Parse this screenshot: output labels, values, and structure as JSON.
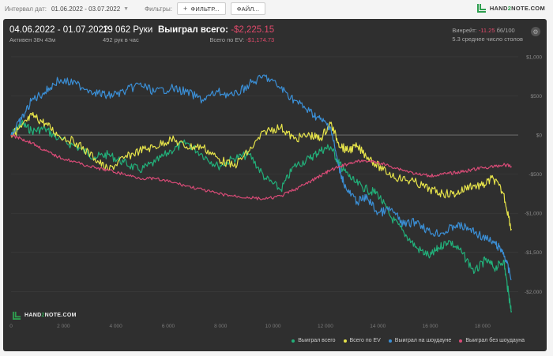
{
  "topbar": {
    "interval_label": "Интервал дат:",
    "interval_value": "01.06.2022 - 03.07.2022",
    "filters_label": "Фильтры:",
    "filter_button": "ФИЛЬТР...",
    "file_button": "ФАЙЛ...",
    "brand_a": "HAND",
    "brand_b": "2",
    "brand_c": "NOTE.COM"
  },
  "summary": {
    "dates": "04.06.2022 - 01.07.2022",
    "active": "Активен 38ч 43м",
    "hands": "19 062 Руки",
    "hands_rate": "492 рук в час",
    "won_total_label": "Выиграл всего:",
    "won_total_value": "-$2,225.15",
    "ev_label": "Всего по EV:",
    "ev_value": "-$1,174.73",
    "winrate_label": "Винрейт:",
    "winrate_value": "-11.25",
    "winrate_suffix": "б6/100",
    "avg_tables": "5.3 среднее число столов"
  },
  "plot_brand": {
    "a": "HAND",
    "b": "2",
    "c": "NOTE.COM"
  },
  "chart_data": {
    "type": "line",
    "y_ticks": [
      1000,
      500,
      0,
      -500,
      -1000,
      -1500,
      -2000
    ],
    "y_tick_labels": [
      "$1,000",
      "$500",
      "$0",
      "-$500",
      "-$1,000",
      "-$1,500",
      "-$2,000"
    ],
    "ylim": [
      -2300,
      1080
    ],
    "x_ticks": [
      0,
      2000,
      4000,
      6000,
      8000,
      10000,
      12000,
      14000,
      16000,
      18000
    ],
    "x_tick_labels": [
      "0",
      "2 000",
      "4 000",
      "6 000",
      "8 000",
      "10 000",
      "12 000",
      "14 000",
      "16 000",
      "18 000"
    ],
    "xlim": [
      0,
      19300
    ],
    "series": [
      {
        "name": "Выиграл всего",
        "color": "#22b07a",
        "x": [
          0,
          400,
          800,
          1300,
          1800,
          2500,
          3200,
          3700,
          4300,
          4900,
          5500,
          6100,
          6700,
          7300,
          7900,
          8500,
          9100,
          9700,
          10300,
          10800,
          11400,
          11800,
          12200,
          12500,
          12700,
          13100,
          13600,
          14000,
          14500,
          15000,
          15500,
          16000,
          16300,
          16700,
          17200,
          17700,
          18100,
          18500,
          18800,
          19000,
          19100
        ],
        "y": [
          0,
          150,
          50,
          80,
          -50,
          -150,
          -280,
          -250,
          -350,
          -450,
          -350,
          -200,
          -100,
          -250,
          -400,
          -300,
          -250,
          -550,
          -700,
          -400,
          -300,
          -200,
          -150,
          -350,
          -450,
          -600,
          -700,
          -750,
          -1050,
          -1250,
          -1450,
          -1550,
          -1450,
          -1350,
          -1500,
          -1750,
          -1600,
          -1700,
          -1600,
          -2050,
          -2250
        ]
      },
      {
        "name": "Всего по EV",
        "color": "#e6e34a",
        "x": [
          0,
          400,
          800,
          1300,
          1800,
          2500,
          3200,
          3700,
          4300,
          4900,
          5500,
          6100,
          6700,
          7300,
          7900,
          8500,
          9100,
          9700,
          10300,
          10800,
          11400,
          11800,
          12200,
          12500,
          12800,
          13200,
          13700,
          14200,
          14800,
          15400,
          16000,
          16500,
          17000,
          17500,
          18000,
          18400,
          18800,
          19100
        ],
        "y": [
          0,
          100,
          250,
          150,
          0,
          -100,
          -300,
          -450,
          -300,
          -200,
          -150,
          -50,
          -150,
          -150,
          -300,
          -400,
          -200,
          50,
          100,
          -50,
          0,
          -50,
          150,
          -100,
          -200,
          -150,
          -300,
          -450,
          -550,
          -600,
          -700,
          -750,
          -750,
          -650,
          -650,
          -550,
          -750,
          -1200
        ]
      },
      {
        "name": "Выиграл на шоудауне",
        "color": "#3b8fd6",
        "x": [
          0,
          400,
          800,
          1300,
          1800,
          2500,
          3200,
          3700,
          4300,
          4900,
          5500,
          6100,
          6700,
          7300,
          7900,
          8500,
          9100,
          9700,
          10300,
          10800,
          11400,
          11800,
          12200,
          12500,
          12800,
          13200,
          13600,
          14000,
          14500,
          15000,
          15500,
          16000,
          16500,
          17000,
          17500,
          18000,
          18500,
          18800,
          19100
        ],
        "y": [
          0,
          200,
          450,
          550,
          700,
          650,
          550,
          500,
          550,
          650,
          550,
          600,
          550,
          450,
          550,
          500,
          650,
          750,
          600,
          450,
          300,
          200,
          100,
          -400,
          -700,
          -850,
          -800,
          -1000,
          -950,
          -1150,
          -1100,
          -1250,
          -1250,
          -1150,
          -1200,
          -1300,
          -1400,
          -1500,
          -1850
        ]
      },
      {
        "name": "Выиграл без шоудауна",
        "color": "#d94b77",
        "x": [
          0,
          400,
          800,
          1300,
          1800,
          2500,
          3200,
          3700,
          4300,
          4900,
          5500,
          6100,
          6700,
          7300,
          7900,
          8500,
          9100,
          9700,
          10300,
          10800,
          11400,
          11800,
          12200,
          12600,
          13000,
          13500,
          14000,
          14500,
          15000,
          15500,
          16000,
          16500,
          17000,
          17500,
          18000,
          18500,
          18800,
          19100
        ],
        "y": [
          0,
          -50,
          -100,
          -200,
          -280,
          -350,
          -420,
          -450,
          -500,
          -550,
          -560,
          -600,
          -650,
          -700,
          -750,
          -780,
          -800,
          -820,
          -780,
          -700,
          -600,
          -520,
          -450,
          -400,
          -350,
          -330,
          -350,
          -400,
          -450,
          -500,
          -520,
          -500,
          -480,
          -450,
          -420,
          -400,
          -380,
          -400
        ]
      }
    ]
  }
}
